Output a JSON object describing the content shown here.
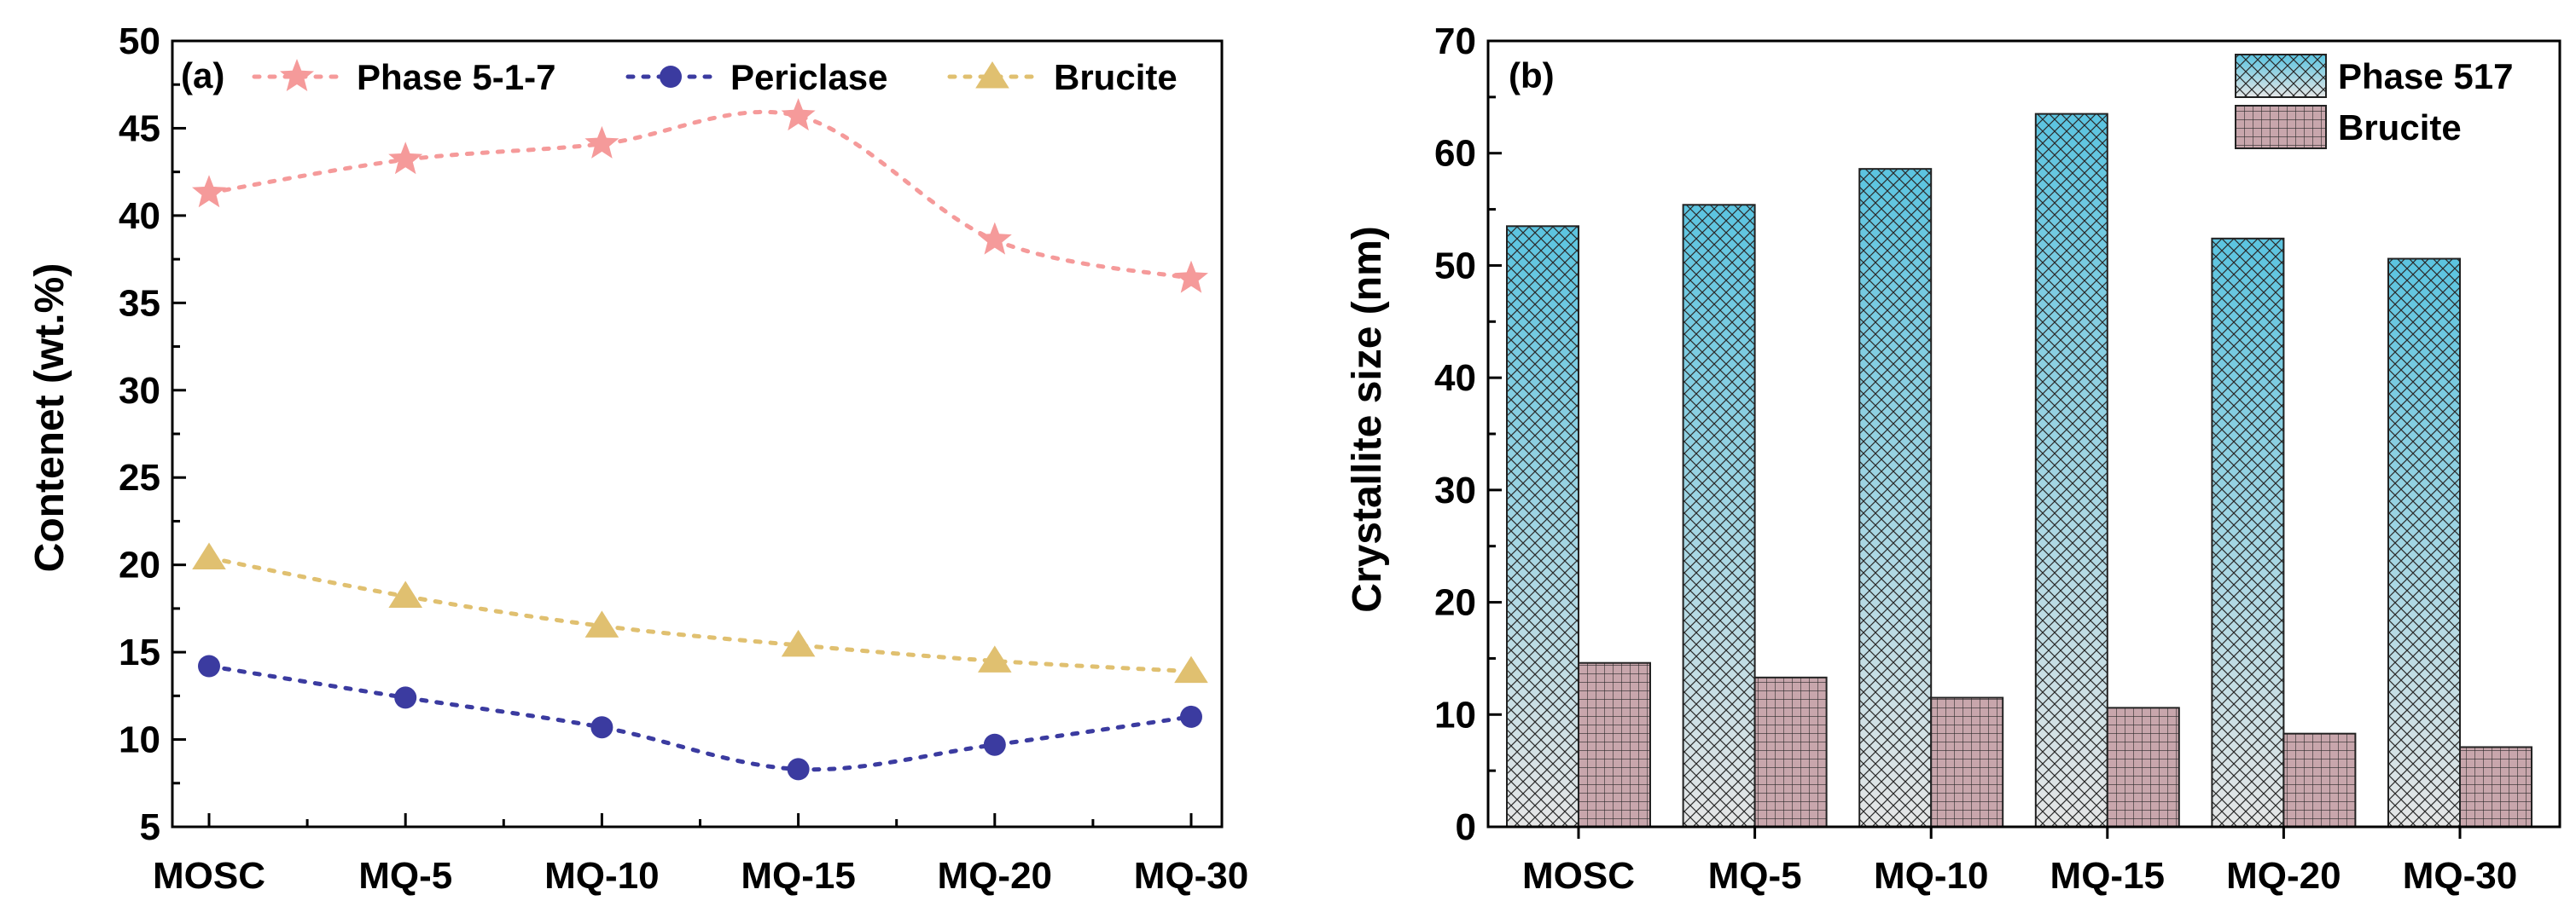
{
  "chart_data": [
    {
      "panel_label": "(a)",
      "type": "line",
      "ylabel": "Contenet (wt.%)",
      "xlabel": "",
      "categories": [
        "MOSC",
        "MQ-5",
        "MQ-10",
        "MQ-15",
        "MQ-20",
        "MQ-30"
      ],
      "ylim": [
        5,
        50
      ],
      "yticks": [
        "5",
        "10",
        "15",
        "20",
        "25",
        "30",
        "35",
        "40",
        "45",
        "50"
      ],
      "grid": false,
      "legend_position": "top",
      "series": [
        {
          "name": "Phase 5-1-7",
          "marker": "star",
          "color": "#f59a9a",
          "values": [
            41.3,
            43.2,
            44.1,
            45.7,
            38.6,
            36.4
          ]
        },
        {
          "name": "Periclase",
          "marker": "circle",
          "color": "#3b3ba0",
          "values": [
            14.2,
            12.4,
            10.7,
            8.3,
            9.7,
            11.3
          ]
        },
        {
          "name": "Brucite",
          "marker": "triangle",
          "color": "#e0c070",
          "values": [
            20.4,
            18.2,
            16.5,
            15.4,
            14.5,
            13.9
          ]
        }
      ]
    },
    {
      "panel_label": "(b)",
      "type": "bar",
      "ylabel": "Crystallite size (nm)",
      "xlabel": "",
      "categories": [
        "MOSC",
        "MQ-5",
        "MQ-10",
        "MQ-15",
        "MQ-20",
        "MQ-30"
      ],
      "ylim": [
        0,
        70
      ],
      "yticks": [
        "0",
        "10",
        "20",
        "30",
        "40",
        "50",
        "60",
        "70"
      ],
      "grid": false,
      "legend_position": "top-right",
      "series": [
        {
          "name": "Phase 517",
          "pattern": "crosshatch-gradient",
          "color": "#5bc4e0",
          "values": [
            53.5,
            55.4,
            58.6,
            63.5,
            52.4,
            50.6
          ]
        },
        {
          "name": "Brucite",
          "pattern": "grid",
          "color": "#c8a6ac",
          "values": [
            14.6,
            13.3,
            11.5,
            10.6,
            8.3,
            7.1
          ]
        }
      ]
    }
  ]
}
